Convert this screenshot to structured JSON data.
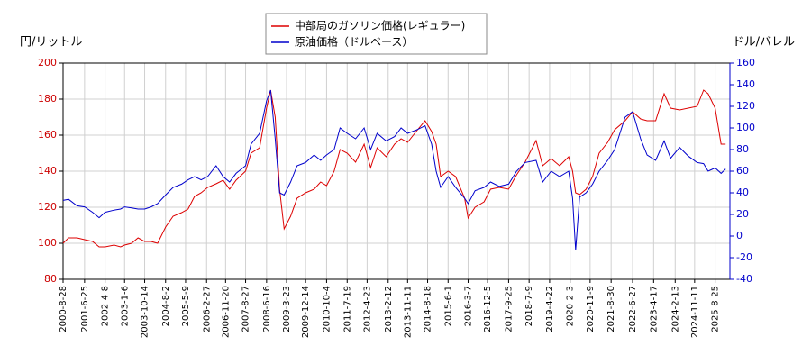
{
  "chart_data": {
    "type": "line",
    "y_label": "円/リットル",
    "y2_label": "ドル/バレル",
    "x": [
      "2000-8-28",
      "2000-11-13",
      "2001-3-12",
      "2001-6-25",
      "2001-10-15",
      "2002-1-14",
      "2002-4-8",
      "2002-8-12",
      "2002-11-11",
      "2003-1-6",
      "2003-4-14",
      "2003-7-14",
      "2003-10-14",
      "2004-1-13",
      "2004-4-12",
      "2004-8-2",
      "2004-11-15",
      "2005-3-14",
      "2005-6-13",
      "2005-9-12",
      "2005-12-12",
      "2006-3-13",
      "2006-7-10",
      "2006-10-16",
      "2007-1-15",
      "2007-4-16",
      "2007-8-27",
      "2007-11-12",
      "2008-3-10",
      "2008-6-16",
      "2008-8-11",
      "2008-10-14",
      "2008-12-15",
      "2009-2-16",
      "2009-5-18",
      "2009-8-17",
      "2009-12-14",
      "2010-4-12",
      "2010-7-12",
      "2010-10-4",
      "2011-1-17",
      "2011-4-11",
      "2011-7-19",
      "2011-11-14",
      "2012-3-12",
      "2012-6-11",
      "2012-9-10",
      "2013-1-15",
      "2013-5-13",
      "2013-8-12",
      "2013-11-11",
      "2014-3-10",
      "2014-7-14",
      "2014-10-14",
      "2014-12-15",
      "2015-2-16",
      "2015-6-1",
      "2015-9-14",
      "2016-1-18",
      "2016-3-7",
      "2016-6-13",
      "2016-10-17",
      "2017-1-16",
      "2017-5-15",
      "2017-9-25",
      "2018-1-15",
      "2018-5-14",
      "2018-10-15",
      "2019-1-15",
      "2019-5-13",
      "2019-9-9",
      "2020-1-14",
      "2020-3-9",
      "2020-4-20",
      "2020-6-15",
      "2020-9-14",
      "2020-12-14",
      "2021-3-15",
      "2021-7-12",
      "2021-10-18",
      "2022-3-14",
      "2022-6-27",
      "2022-10-17",
      "2023-1-16",
      "2023-5-15",
      "2023-9-11",
      "2023-12-11",
      "2024-4-15",
      "2024-8-13",
      "2024-12-16",
      "2025-3-17",
      "2025-5-19",
      "2025-8-25",
      "2025-11-17",
      "2026-1-19"
    ],
    "series": [
      {
        "name": "中部局のガソリン価格(レギュラー)",
        "color": "#dd0000",
        "axis": "y",
        "values": [
          100,
          103,
          103,
          102,
          101,
          98,
          98,
          99,
          98,
          99,
          100,
          103,
          101,
          101,
          100,
          109,
          115,
          117,
          119,
          126,
          128,
          131,
          133,
          135,
          130,
          135,
          140,
          150,
          153,
          175,
          185,
          170,
          130,
          108,
          115,
          125,
          128,
          130,
          134,
          132,
          140,
          152,
          150,
          145,
          155,
          142,
          153,
          148,
          155,
          158,
          156,
          162,
          168,
          162,
          155,
          137,
          140,
          137,
          125,
          114,
          120,
          123,
          130,
          131,
          130,
          138,
          145,
          157,
          143,
          147,
          143,
          148,
          140,
          128,
          127,
          130,
          137,
          150,
          156,
          163,
          168,
          173,
          169,
          168,
          168,
          183,
          175,
          174,
          175,
          176,
          185,
          183,
          175,
          155,
          155
        ]
      },
      {
        "name": "原油価格（ドルベース）",
        "color": "#0000cc",
        "axis": "y2",
        "values": [
          33,
          34,
          28,
          27,
          22,
          17,
          22,
          24,
          25,
          27,
          26,
          25,
          25,
          27,
          30,
          38,
          45,
          48,
          52,
          55,
          52,
          55,
          65,
          55,
          50,
          58,
          65,
          85,
          95,
          125,
          135,
          90,
          40,
          38,
          50,
          65,
          68,
          75,
          70,
          75,
          80,
          100,
          95,
          90,
          100,
          80,
          95,
          88,
          92,
          100,
          95,
          98,
          102,
          85,
          60,
          45,
          55,
          45,
          35,
          30,
          42,
          45,
          50,
          46,
          48,
          60,
          68,
          70,
          50,
          60,
          55,
          60,
          35,
          -13,
          36,
          40,
          48,
          60,
          70,
          80,
          110,
          115,
          90,
          75,
          70,
          88,
          72,
          82,
          74,
          68,
          67,
          60,
          63,
          58,
          62
        ]
      }
    ],
    "xlim": [
      "2000-8-28",
      "2026-3-20"
    ],
    "xticks": [
      "2000-8-28",
      "2001-6-25",
      "2002-4-8",
      "2003-1-6",
      "2003-10-14",
      "2004-8-2",
      "2005-5-9",
      "2006-2-27",
      "2006-11-20",
      "2007-8-27",
      "2008-6-16",
      "2009-3-23",
      "2009-12-14",
      "2010-10-4",
      "2011-7-19",
      "2012-4-23",
      "2013-2-12",
      "2013-11-11",
      "2014-8-18",
      "2015-6-1",
      "2016-3-7",
      "2016-12-5",
      "2017-9-25",
      "2018-7-9",
      "2019-4-22",
      "2020-2-3",
      "2020-11-9",
      "2021-8-30",
      "2022-6-27",
      "2023-4-17",
      "2024-2-13",
      "2024-11-11",
      "2025-8-25"
    ],
    "ylim": [
      80,
      200
    ],
    "yticks": [
      80,
      100,
      120,
      140,
      160,
      180,
      200
    ],
    "y2lim": [
      -40,
      160
    ],
    "y2ticks": [
      -40,
      -20,
      0,
      20,
      40,
      60,
      80,
      100,
      120,
      140,
      160
    ],
    "grid": true,
    "legend": "top"
  }
}
